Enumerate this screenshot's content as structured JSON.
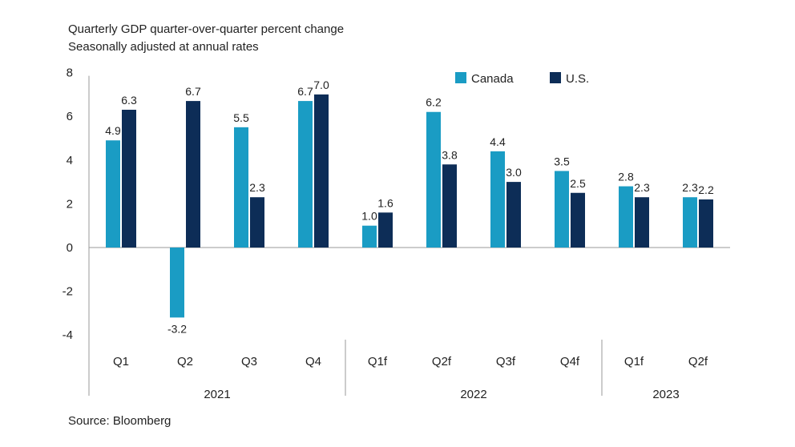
{
  "chart_data": {
    "type": "bar",
    "title": "Quarterly GDP quarter-over-quarter percent change",
    "subtitle": "Seasonally adjusted at annual rates",
    "source": "Source: Bloomberg",
    "categories": [
      "Q1",
      "Q2",
      "Q3",
      "Q4",
      "Q1f",
      "Q2f",
      "Q3f",
      "Q4f",
      "Q1f",
      "Q2f"
    ],
    "groups": [
      {
        "label": "2021",
        "count": 4
      },
      {
        "label": "2022",
        "count": 4
      },
      {
        "label": "2023",
        "count": 2
      }
    ],
    "series": [
      {
        "name": "Canada",
        "color": "#1a9cc4",
        "values": [
          4.9,
          -3.2,
          5.5,
          6.7,
          1.0,
          6.2,
          4.4,
          3.5,
          2.8,
          2.3
        ]
      },
      {
        "name": "U.S.",
        "color": "#0d2d57",
        "values": [
          6.3,
          6.7,
          2.3,
          7.0,
          1.6,
          3.8,
          3.0,
          2.5,
          2.3,
          2.2
        ]
      }
    ],
    "ylim": [
      -4,
      8
    ],
    "yticks": [
      8,
      6,
      4,
      2,
      0,
      -2,
      -4
    ],
    "legend_position": "top-right",
    "grid": false
  }
}
